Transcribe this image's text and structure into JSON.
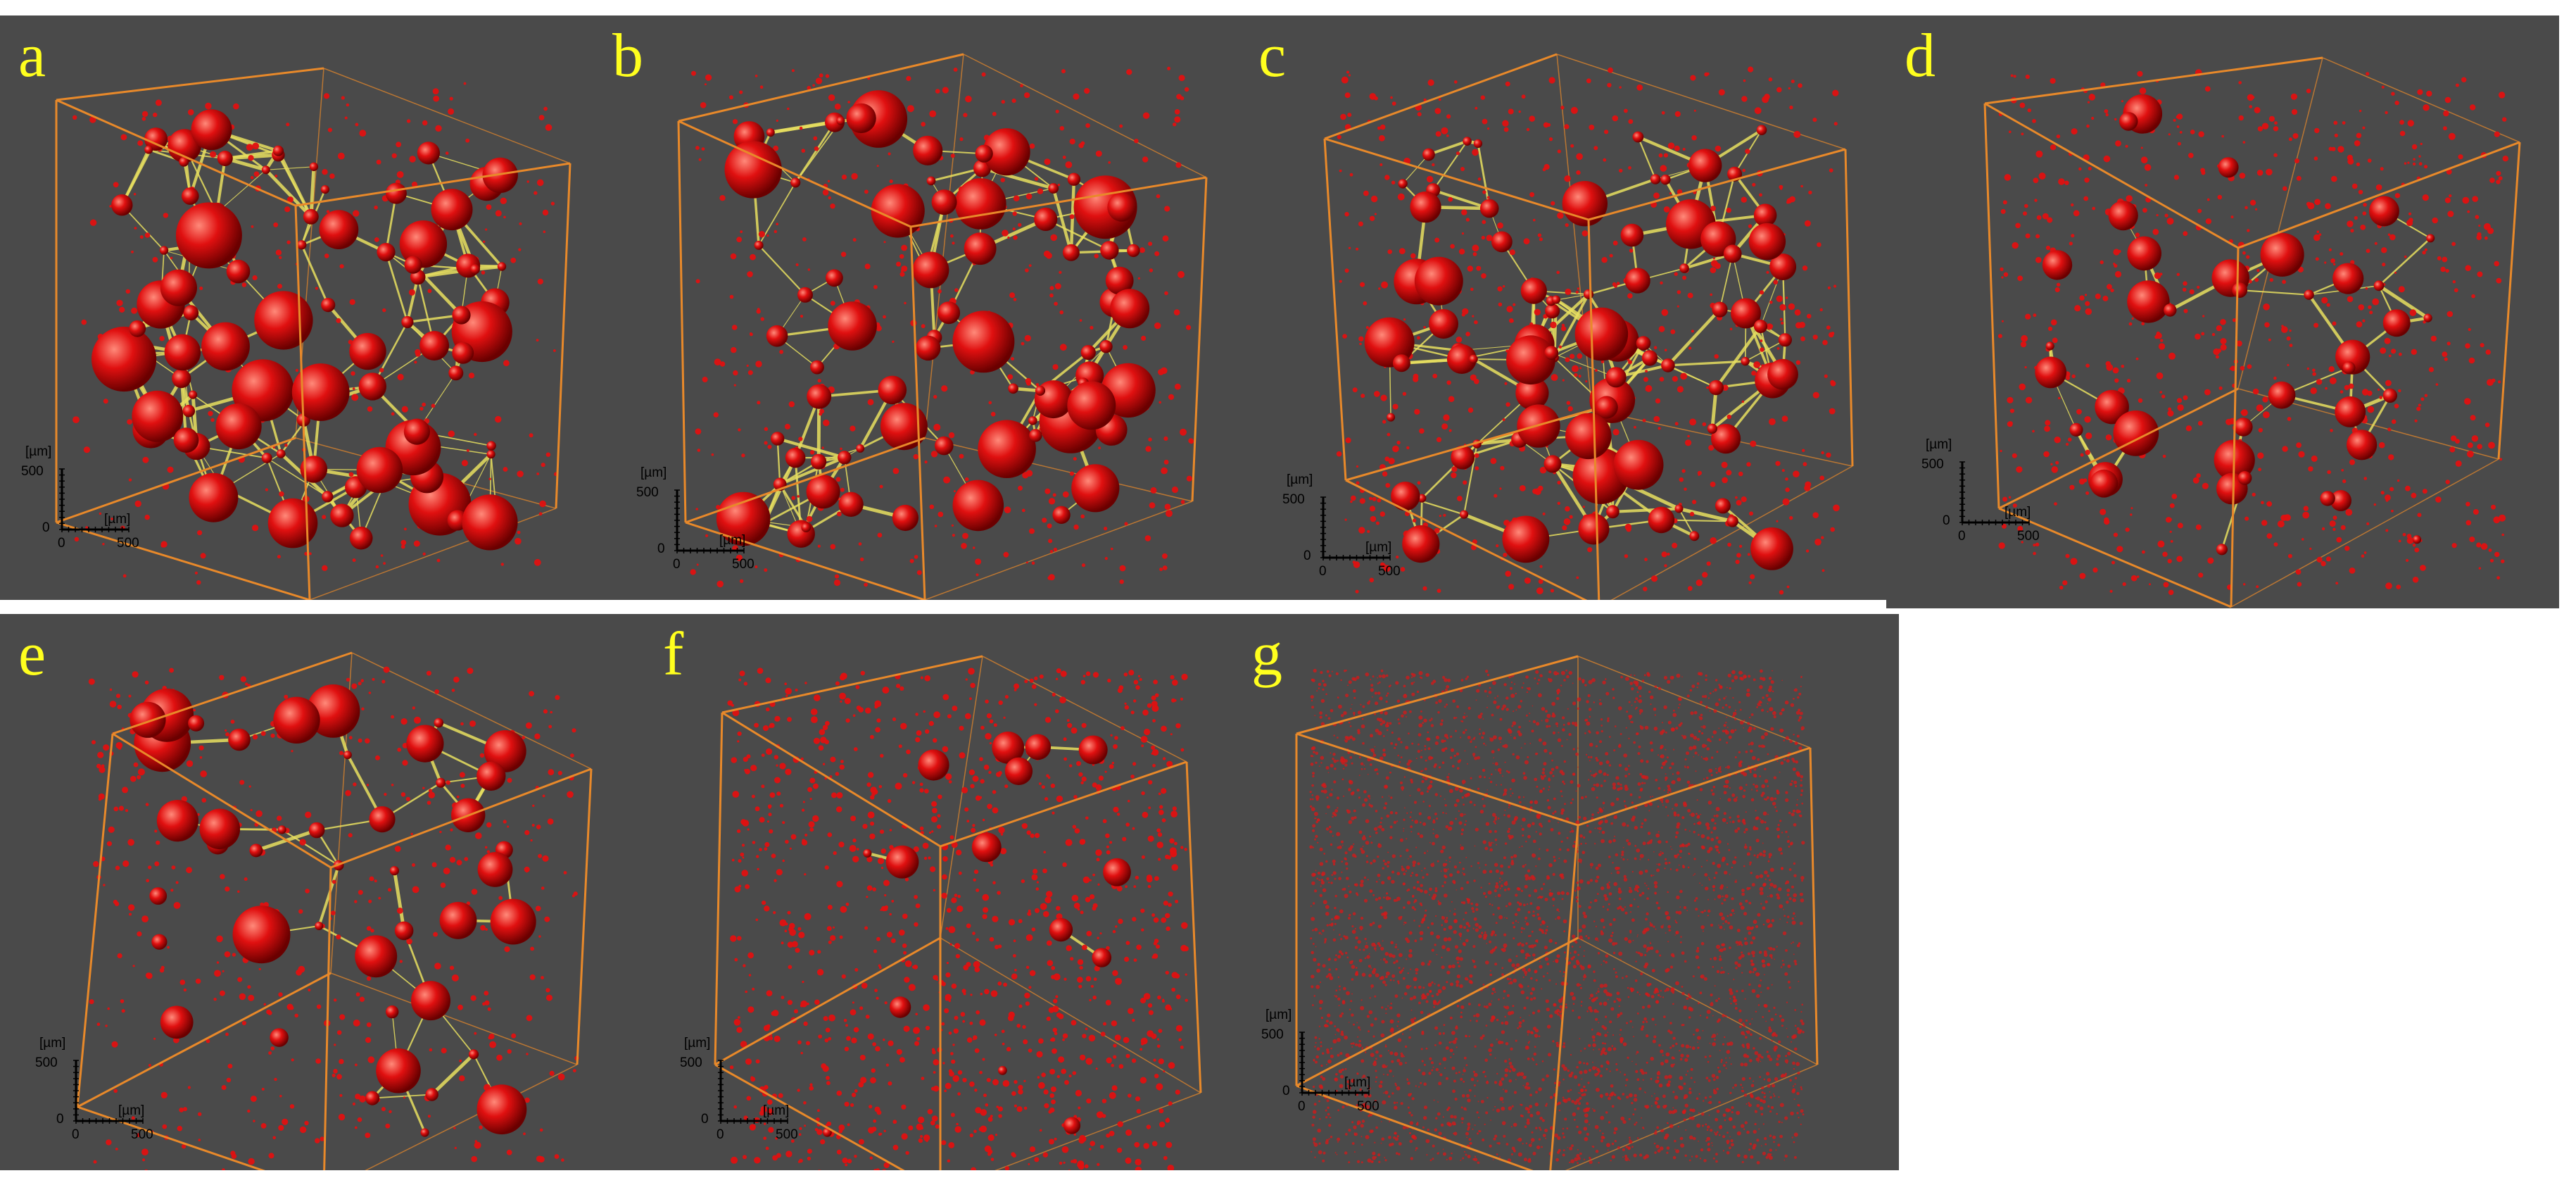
{
  "panels": [
    {
      "label": "a"
    },
    {
      "label": "b"
    },
    {
      "label": "c"
    },
    {
      "label": "d"
    },
    {
      "label": "e"
    },
    {
      "label": "f"
    },
    {
      "label": "g"
    }
  ],
  "scale_bar": {
    "unit_y": "[µm]",
    "unit_x": "[µm]",
    "y_max": "500",
    "x_origin": "0",
    "x_max": "500",
    "y_origin": "0"
  },
  "colors": {
    "background": "#4a4a4a",
    "cube_edge": "#e8892a",
    "pore": "#e01010",
    "throat": "#e8e060",
    "label": "#ffff1e"
  }
}
